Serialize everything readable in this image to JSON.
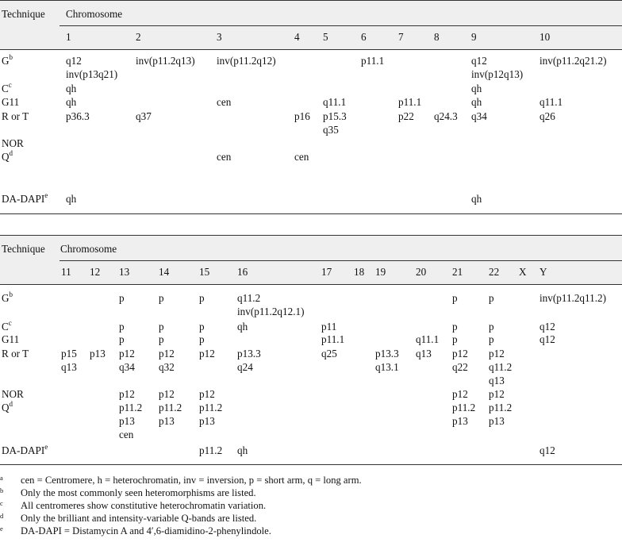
{
  "header": {
    "technique_label": "Technique",
    "chromosome_label": "Chromosome"
  },
  "table1": {
    "columns": [
      "1",
      "2",
      "3",
      "4",
      "5",
      "6",
      "7",
      "8",
      "9",
      "10"
    ],
    "rows": [
      {
        "label": "G",
        "sup": "b",
        "cells": [
          [
            "q12",
            "inv(p13q21)"
          ],
          [
            "inv(p11.2q13)"
          ],
          [
            "inv(p11.2q12)"
          ],
          [],
          [],
          [
            "p11.1"
          ],
          [],
          [],
          [
            "q12",
            "inv(p12q13)"
          ],
          [
            "inv(p11.2q21.2)"
          ]
        ]
      },
      {
        "label": "C",
        "sup": "c",
        "cells": [
          [
            "qh"
          ],
          [],
          [],
          [],
          [],
          [],
          [],
          [],
          [
            "qh"
          ],
          []
        ]
      },
      {
        "label": "G11",
        "sup": "",
        "cells": [
          [
            "qh"
          ],
          [],
          [
            "cen"
          ],
          [],
          [
            "q11.1"
          ],
          [],
          [
            "p11.1"
          ],
          [],
          [
            "qh"
          ],
          [
            "q11.1"
          ]
        ]
      },
      {
        "label": "R or T",
        "sup": "",
        "cells": [
          [
            "p36.3"
          ],
          [
            "q37"
          ],
          [],
          [
            "p16"
          ],
          [
            "p15.3",
            "q35"
          ],
          [],
          [
            "p22"
          ],
          [
            "q24.3"
          ],
          [
            "q34"
          ],
          [
            "q26"
          ]
        ]
      },
      {
        "label": "NOR",
        "sup": "",
        "cells": [
          [],
          [],
          [],
          [],
          [],
          [],
          [],
          [],
          [],
          []
        ]
      },
      {
        "label": "Q",
        "sup": "d",
        "cells": [
          [],
          [],
          [
            "cen"
          ],
          [
            "cen"
          ],
          [],
          [],
          [],
          [],
          [],
          []
        ]
      },
      {
        "label": "DA-DAPI",
        "sup": "e",
        "cells": [
          [
            "qh"
          ],
          [],
          [],
          [],
          [],
          [],
          [],
          [],
          [
            "qh"
          ],
          []
        ]
      }
    ]
  },
  "table2": {
    "columns": [
      "11",
      "12",
      "13",
      "14",
      "15",
      "16",
      "17",
      "18",
      "19",
      "20",
      "21",
      "22",
      "X",
      "Y"
    ],
    "rows": [
      {
        "label": "G",
        "sup": "b",
        "cells": [
          [],
          [],
          [
            "p"
          ],
          [
            "p"
          ],
          [
            "p"
          ],
          [
            "q11.2",
            "inv(p11.2q12.1)"
          ],
          [],
          [],
          [],
          [],
          [
            "p"
          ],
          [
            "p"
          ],
          [],
          [
            "inv(p11.2q11.2)"
          ]
        ]
      },
      {
        "label": "C",
        "sup": "c",
        "cells": [
          [],
          [],
          [
            "p"
          ],
          [
            "p"
          ],
          [
            "p"
          ],
          [
            "qh"
          ],
          [
            "p11"
          ],
          [],
          [],
          [],
          [
            "p"
          ],
          [
            "p"
          ],
          [],
          [
            "q12"
          ]
        ]
      },
      {
        "label": "G11",
        "sup": "",
        "cells": [
          [],
          [],
          [
            "p"
          ],
          [
            "p"
          ],
          [
            "p"
          ],
          [],
          [
            "p11.1"
          ],
          [],
          [],
          [
            "q11.1"
          ],
          [
            "p"
          ],
          [
            "p"
          ],
          [],
          [
            "q12"
          ]
        ]
      },
      {
        "label": "R or T",
        "sup": "",
        "cells": [
          [
            "p15",
            "q13"
          ],
          [
            "p13"
          ],
          [
            "p12",
            "q34"
          ],
          [
            "p12",
            "q32"
          ],
          [
            "p12"
          ],
          [
            "p13.3",
            "q24"
          ],
          [
            "q25"
          ],
          [],
          [
            "p13.3",
            "q13.1"
          ],
          [
            "q13"
          ],
          [
            "p12",
            "q22"
          ],
          [
            "p12",
            "q11.2",
            "q13"
          ],
          [],
          []
        ]
      },
      {
        "label": "NOR",
        "sup": "",
        "cells": [
          [],
          [],
          [
            "p12"
          ],
          [
            "p12"
          ],
          [
            "p12"
          ],
          [],
          [],
          [],
          [],
          [],
          [
            "p12"
          ],
          [
            "p12"
          ],
          [],
          []
        ]
      },
      {
        "label": "Q",
        "sup": "d",
        "cells": [
          [],
          [],
          [
            "p11.2",
            "p13",
            "cen"
          ],
          [
            "p11.2",
            "p13"
          ],
          [
            "p11.2",
            "p13"
          ],
          [],
          [],
          [],
          [],
          [],
          [
            "p11.2",
            "p13"
          ],
          [
            "p11.2",
            "p13"
          ],
          [],
          []
        ]
      },
      {
        "label": "DA-DAPI",
        "sup": "e",
        "cells": [
          [],
          [],
          [],
          [],
          [
            "p11.2"
          ],
          [
            "qh"
          ],
          [],
          [],
          [],
          [],
          [],
          [],
          [],
          [
            "q12"
          ]
        ]
      }
    ]
  },
  "footnotes": [
    {
      "mark": "a",
      "text": "cen = Centromere, h = heterochromatin, inv = inversion, p = short arm, q = long arm."
    },
    {
      "mark": "b",
      "text": "Only the most commonly seen heteromorphisms are listed."
    },
    {
      "mark": "c",
      "text": "All centromeres show constitutive heterochromatin variation."
    },
    {
      "mark": "d",
      "text": "Only the brilliant and intensity-variable Q-bands are listed."
    },
    {
      "mark": "e",
      "text": "DA-DAPI = Distamycin A and 4′,6-diamidino-2-phenylindole."
    }
  ]
}
